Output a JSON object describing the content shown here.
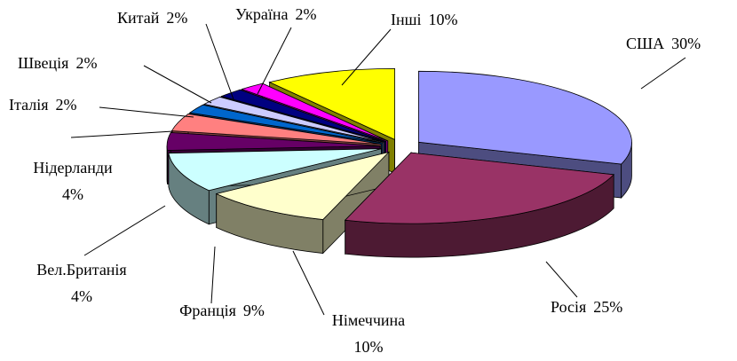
{
  "chart_data": {
    "type": "pie3d",
    "categories": [
      "США",
      "Росія",
      "Німеччина",
      "Франція",
      "Вел.Британія",
      "Нідерланди",
      "Італія",
      "Швеція",
      "Китай",
      "Україна",
      "Інші"
    ],
    "values": [
      30,
      25,
      10,
      9,
      4,
      4,
      2,
      2,
      2,
      2,
      10
    ],
    "value_labels": [
      "30%",
      "25%",
      "10%",
      "9%",
      "4%",
      "4%",
      "2%",
      "2%",
      "2%",
      "2%",
      "10%"
    ],
    "colors": [
      "#9999ff",
      "#993366",
      "#ffffcc",
      "#ccffff",
      "#660066",
      "#ff8080",
      "#0066cc",
      "#ccccff",
      "#000080",
      "#ff00ff",
      "#ffff00"
    ]
  }
}
